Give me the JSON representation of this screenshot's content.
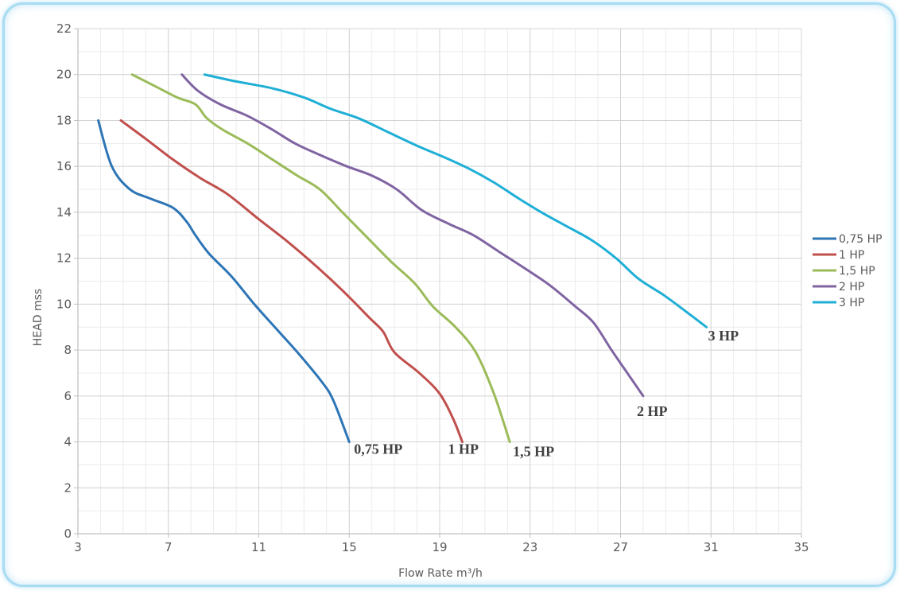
{
  "chart_data": {
    "type": "line",
    "xlabel": "Flow Rate m³/h",
    "ylabel": "HEAD mss",
    "xlim": [
      3,
      35
    ],
    "ylim": [
      0,
      22
    ],
    "x_ticks": [
      3,
      7,
      11,
      15,
      19,
      23,
      27,
      31,
      35
    ],
    "y_ticks": [
      0,
      2,
      4,
      6,
      8,
      10,
      12,
      14,
      16,
      18,
      20,
      22
    ],
    "grid": true,
    "legend": "right",
    "series": [
      {
        "name": "0,75 HP",
        "end_label": "0,75 HP",
        "color": "#2e75b6",
        "x": [
          3.9,
          4.5,
          5.3,
          6.2,
          7.2,
          7.8,
          8.2,
          8.8,
          9.8,
          10.8,
          11.8,
          12.8,
          13.8,
          14.3,
          15.0
        ],
        "y": [
          18,
          16,
          15,
          14.6,
          14.2,
          13.6,
          13,
          12.2,
          11.2,
          10,
          8.9,
          7.8,
          6.6,
          5.8,
          4
        ]
      },
      {
        "name": "1 HP",
        "end_label": "1 HP",
        "color": "#c0504d",
        "x": [
          4.9,
          6.0,
          7.2,
          8.4,
          9.6,
          11.0,
          12.3,
          13.6,
          14.8,
          15.9,
          16.5,
          17.0,
          18.1,
          19.0,
          19.6,
          20.0
        ],
        "y": [
          18,
          17.2,
          16.3,
          15.5,
          14.8,
          13.7,
          12.7,
          11.6,
          10.5,
          9.4,
          8.8,
          7.9,
          7,
          6.1,
          5,
          4
        ]
      },
      {
        "name": "1,5 HP",
        "end_label": "1,5 HP",
        "color": "#9bbb59",
        "x": [
          5.4,
          6.4,
          7.4,
          8.2,
          8.7,
          9.4,
          10.5,
          11.6,
          12.7,
          13.7,
          14.7,
          15.7,
          16.8,
          17.9,
          18.7,
          19.7,
          20.6,
          21.4,
          22.1
        ],
        "y": [
          20,
          19.5,
          19,
          18.7,
          18.1,
          17.6,
          17,
          16.3,
          15.6,
          15,
          14,
          13,
          11.9,
          10.9,
          9.9,
          9,
          7.9,
          6.1,
          4
        ]
      },
      {
        "name": "2 HP",
        "end_label": "2 HP",
        "color": "#8064a2",
        "x": [
          7.6,
          8.3,
          9.3,
          10.5,
          11.6,
          12.6,
          13.7,
          14.9,
          16.0,
          17.1,
          18.2,
          19.4,
          20.5,
          21.6,
          22.7,
          23.9,
          25.0,
          25.8,
          26.6,
          27.3,
          28.0
        ],
        "y": [
          20,
          19.3,
          18.7,
          18.2,
          17.6,
          17,
          16.5,
          16,
          15.6,
          15,
          14.1,
          13.5,
          13,
          12.3,
          11.6,
          10.8,
          9.9,
          9.2,
          8,
          7,
          6
        ]
      },
      {
        "name": "3 HP",
        "end_label": "3 HP",
        "color": "#1fafd6",
        "x": [
          8.6,
          10.0,
          11.6,
          13.0,
          14.2,
          15.4,
          16.7,
          18.0,
          19.2,
          20.3,
          21.4,
          22.5,
          23.5,
          24.6,
          25.7,
          26.8,
          27.8,
          28.9,
          30.0,
          30.8
        ],
        "y": [
          20,
          19.7,
          19.4,
          19,
          18.5,
          18.1,
          17.5,
          16.9,
          16.4,
          15.9,
          15.3,
          14.6,
          14,
          13.4,
          12.8,
          12,
          11.1,
          10.4,
          9.6,
          9
        ]
      }
    ]
  }
}
